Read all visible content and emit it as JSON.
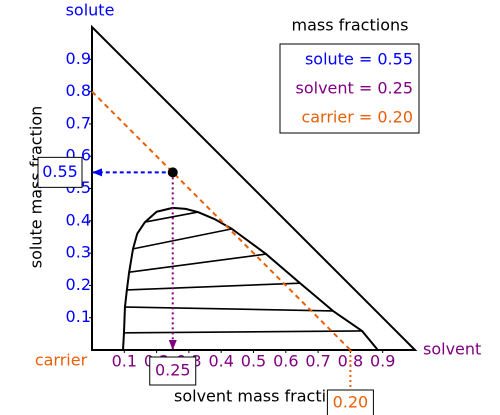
{
  "chart_data": {
    "type": "ternary",
    "corner_labels": {
      "top": "solute",
      "left": "carrier",
      "right": "solvent"
    },
    "corner_colors": {
      "top": "#0000ff",
      "left": "#e8600a",
      "right": "#800080"
    },
    "xlabel": "solvent mass fraction",
    "ylabel": "solute mass fraction",
    "xlim": [
      0,
      1
    ],
    "ylim": [
      0,
      1
    ],
    "xticks": [
      0.1,
      0.2,
      0.3,
      0.4,
      0.5,
      0.6,
      0.7,
      0.8,
      0.9
    ],
    "yticks": [
      0.1,
      0.2,
      0.3,
      0.4,
      0.5,
      0.6,
      0.7,
      0.8,
      0.9
    ],
    "binodal": {
      "x": [
        0.096,
        0.099,
        0.102,
        0.108,
        0.115,
        0.127,
        0.14,
        0.164,
        0.2,
        0.25,
        0.29,
        0.328,
        0.38,
        0.433,
        0.539,
        0.644,
        0.746,
        0.836,
        0.885
      ],
      "y": [
        0,
        0.053,
        0.133,
        0.186,
        0.241,
        0.313,
        0.36,
        0.396,
        0.428,
        0.44,
        0.437,
        0.427,
        0.405,
        0.375,
        0.297,
        0.207,
        0.121,
        0.059,
        0
      ]
    },
    "tie_lines": [
      {
        "x": [
          0.099,
          0.836
        ],
        "y": [
          0.053,
          0.059
        ]
      },
      {
        "x": [
          0.102,
          0.746
        ],
        "y": [
          0.133,
          0.121
        ]
      },
      {
        "x": [
          0.108,
          0.644
        ],
        "y": [
          0.186,
          0.207
        ]
      },
      {
        "x": [
          0.115,
          0.539
        ],
        "y": [
          0.241,
          0.297
        ]
      },
      {
        "x": [
          0.127,
          0.433
        ],
        "y": [
          0.313,
          0.375
        ]
      },
      {
        "x": [
          0.164,
          0.328
        ],
        "y": [
          0.396,
          0.427
        ]
      }
    ],
    "point": {
      "solute": 0.55,
      "solvent": 0.25,
      "carrier": 0.2,
      "value_labels": {
        "solute": "0.55",
        "solvent": "0.25",
        "carrier": "0.20"
      }
    },
    "legend": {
      "title": "mass fractions",
      "entries": [
        {
          "label": "solute = 0.55",
          "color": "#0000ff"
        },
        {
          "label": "solvent = 0.25",
          "color": "#800080"
        },
        {
          "label": "carrier = 0.20",
          "color": "#e8600a"
        }
      ]
    }
  }
}
